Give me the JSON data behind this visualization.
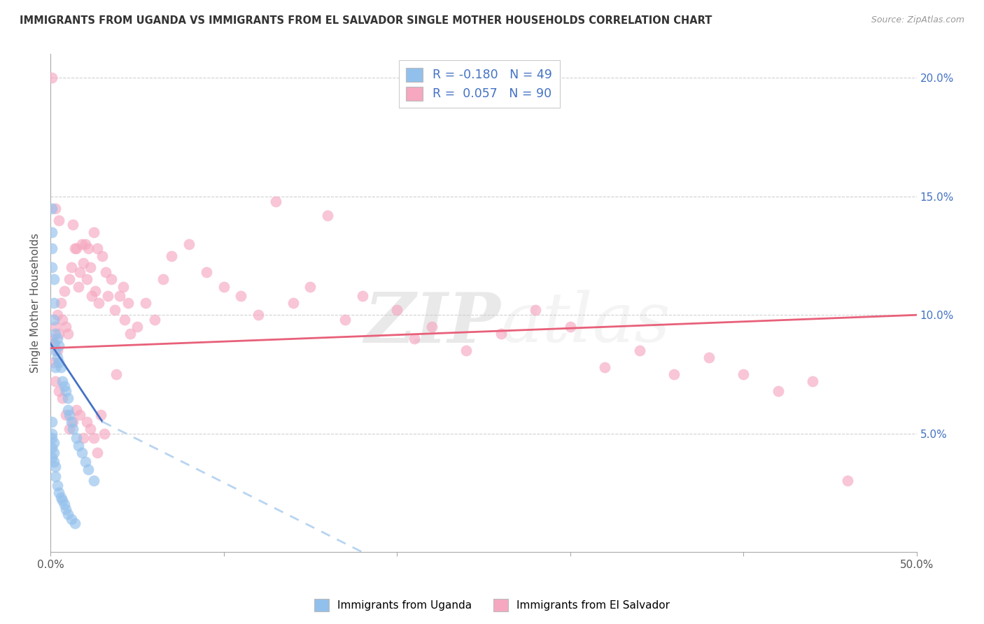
{
  "title": "IMMIGRANTS FROM UGANDA VS IMMIGRANTS FROM EL SALVADOR SINGLE MOTHER HOUSEHOLDS CORRELATION CHART",
  "source": "Source: ZipAtlas.com",
  "xlabel_blue": "Immigrants from Uganda",
  "xlabel_pink": "Immigrants from El Salvador",
  "ylabel": "Single Mother Households",
  "watermark_zip": "ZIP",
  "watermark_atlas": "atlas",
  "legend": {
    "blue": {
      "R": -0.18,
      "N": 49
    },
    "pink": {
      "R": 0.057,
      "N": 90
    }
  },
  "xlim": [
    0.0,
    0.5
  ],
  "ylim": [
    0.0,
    0.21
  ],
  "xticks": [
    0.0,
    0.1,
    0.2,
    0.3,
    0.4,
    0.5
  ],
  "yticks": [
    0.0,
    0.05,
    0.1,
    0.15,
    0.2
  ],
  "ytick_labels_right": [
    "",
    "5.0%",
    "10.0%",
    "15.0%",
    "20.0%"
  ],
  "xtick_labels": [
    "0.0%",
    "",
    "",
    "",
    "",
    "50.0%"
  ],
  "color_blue": "#92C0EC",
  "color_pink": "#F5A8C0",
  "line_blue": "#4472C4",
  "line_pink": "#E8607A",
  "line_dashed_blue": "#B8D4F0",
  "background_color": "#FFFFFF",
  "blue_x": [
    0.001,
    0.001,
    0.001,
    0.001,
    0.002,
    0.002,
    0.002,
    0.002,
    0.003,
    0.003,
    0.003,
    0.004,
    0.004,
    0.005,
    0.005,
    0.006,
    0.007,
    0.008,
    0.009,
    0.01,
    0.01,
    0.011,
    0.012,
    0.013,
    0.015,
    0.016,
    0.018,
    0.02,
    0.022,
    0.025,
    0.001,
    0.001,
    0.001,
    0.002,
    0.002,
    0.003,
    0.003,
    0.004,
    0.005,
    0.006,
    0.007,
    0.008,
    0.009,
    0.01,
    0.012,
    0.014,
    0.001,
    0.001,
    0.002
  ],
  "blue_y": [
    0.145,
    0.135,
    0.128,
    0.12,
    0.115,
    0.105,
    0.098,
    0.088,
    0.092,
    0.085,
    0.078,
    0.09,
    0.082,
    0.087,
    0.08,
    0.078,
    0.072,
    0.07,
    0.068,
    0.065,
    0.06,
    0.058,
    0.055,
    0.052,
    0.048,
    0.045,
    0.042,
    0.038,
    0.035,
    0.03,
    0.048,
    0.044,
    0.04,
    0.042,
    0.038,
    0.036,
    0.032,
    0.028,
    0.025,
    0.023,
    0.022,
    0.02,
    0.018,
    0.016,
    0.014,
    0.012,
    0.055,
    0.05,
    0.046
  ],
  "pink_x": [
    0.001,
    0.001,
    0.002,
    0.003,
    0.003,
    0.004,
    0.004,
    0.005,
    0.005,
    0.006,
    0.007,
    0.008,
    0.009,
    0.01,
    0.011,
    0.012,
    0.013,
    0.014,
    0.015,
    0.016,
    0.017,
    0.018,
    0.019,
    0.02,
    0.021,
    0.022,
    0.023,
    0.024,
    0.025,
    0.026,
    0.027,
    0.028,
    0.03,
    0.032,
    0.033,
    0.035,
    0.037,
    0.038,
    0.04,
    0.042,
    0.043,
    0.045,
    0.046,
    0.05,
    0.055,
    0.06,
    0.065,
    0.07,
    0.08,
    0.09,
    0.1,
    0.11,
    0.12,
    0.13,
    0.14,
    0.15,
    0.16,
    0.17,
    0.18,
    0.2,
    0.21,
    0.22,
    0.24,
    0.26,
    0.28,
    0.3,
    0.32,
    0.34,
    0.36,
    0.38,
    0.4,
    0.42,
    0.44,
    0.46,
    0.002,
    0.003,
    0.005,
    0.007,
    0.009,
    0.011,
    0.013,
    0.015,
    0.017,
    0.019,
    0.021,
    0.023,
    0.025,
    0.027,
    0.029,
    0.031
  ],
  "pink_y": [
    0.09,
    0.2,
    0.088,
    0.095,
    0.145,
    0.1,
    0.085,
    0.092,
    0.14,
    0.105,
    0.098,
    0.11,
    0.095,
    0.092,
    0.115,
    0.12,
    0.138,
    0.128,
    0.128,
    0.112,
    0.118,
    0.13,
    0.122,
    0.13,
    0.115,
    0.128,
    0.12,
    0.108,
    0.135,
    0.11,
    0.128,
    0.105,
    0.125,
    0.118,
    0.108,
    0.115,
    0.102,
    0.075,
    0.108,
    0.112,
    0.098,
    0.105,
    0.092,
    0.095,
    0.105,
    0.098,
    0.115,
    0.125,
    0.13,
    0.118,
    0.112,
    0.108,
    0.1,
    0.148,
    0.105,
    0.112,
    0.142,
    0.098,
    0.108,
    0.102,
    0.09,
    0.095,
    0.085,
    0.092,
    0.102,
    0.095,
    0.078,
    0.085,
    0.075,
    0.082,
    0.075,
    0.068,
    0.072,
    0.03,
    0.08,
    0.072,
    0.068,
    0.065,
    0.058,
    0.052,
    0.055,
    0.06,
    0.058,
    0.048,
    0.055,
    0.052,
    0.048,
    0.042,
    0.058,
    0.05
  ],
  "blue_line_x0": 0.0,
  "blue_line_y0": 0.088,
  "blue_line_x1_solid": 0.03,
  "blue_line_y1_solid": 0.055,
  "blue_line_x1_dash": 0.18,
  "blue_line_y1_dash": 0.0,
  "pink_line_x0": 0.0,
  "pink_line_y0": 0.086,
  "pink_line_x1": 0.5,
  "pink_line_y1": 0.1
}
